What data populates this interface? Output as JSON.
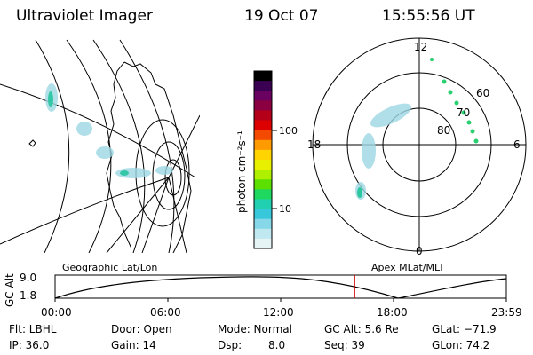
{
  "header": {
    "title": "Ultraviolet Imager",
    "date": "19 Oct 07",
    "time": "15:55:56 UT"
  },
  "colorbar": {
    "unit_label": "photon cm⁻²s⁻¹",
    "ticks": [
      "100",
      "10"
    ],
    "colors": [
      "#000000",
      "#3a0052",
      "#6a0060",
      "#8b0040",
      "#b40018",
      "#dc0000",
      "#f44a00",
      "#ff9a00",
      "#ffd400",
      "#e8f000",
      "#aef000",
      "#5ce000",
      "#1ed860",
      "#20d0b0",
      "#38c8dc",
      "#86d8e8",
      "#c0e8f0",
      "#e6f4f6"
    ]
  },
  "polar": {
    "mlt_labels": [
      "12",
      "18",
      "6",
      "0"
    ],
    "lat_labels": [
      "60",
      "70",
      "80"
    ]
  },
  "projections": {
    "left": "Geographic Lat/Lon",
    "right": "Apex MLat/MLT"
  },
  "altitude_plot": {
    "axis_label": "GC Alt",
    "y_ticks": [
      "9.0",
      "1.8"
    ],
    "x_ticks": [
      "00:00",
      "06:00",
      "12:00",
      "18:00",
      "23:59"
    ],
    "current_time_fraction": 0.6638,
    "marker_color": "#cc0000"
  },
  "status": {
    "filter": "Flt: LBHL",
    "door": "Door: Open",
    "mode": "Mode: Normal",
    "gc_alt": "GC Alt: 5.6 Re",
    "glat": "GLat: −71.9",
    "ip": "IP: 36.0",
    "gain": "Gain: 14",
    "dsp_label": "Dsp:",
    "dsp_value": "8.0",
    "seq": "Seq: 39",
    "glon": "GLon:  74.2"
  }
}
